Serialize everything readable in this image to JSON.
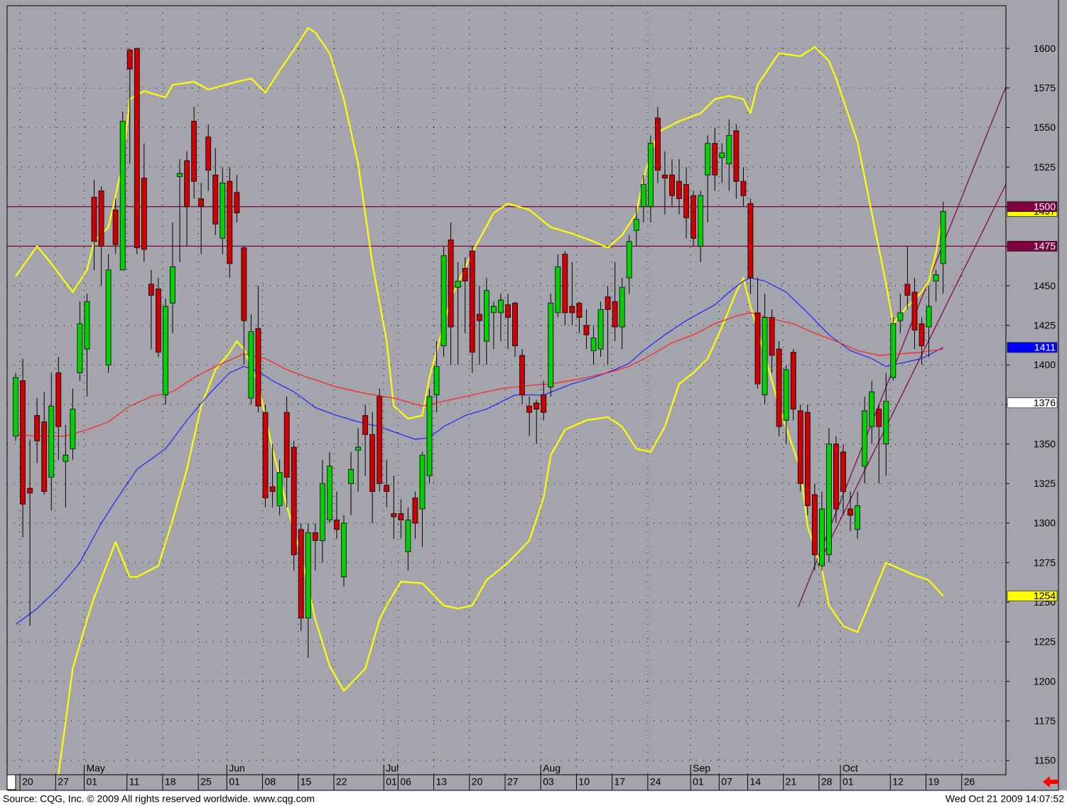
{
  "chart_data": {
    "type": "candlestick",
    "open": [
      1355,
      1390,
      1322,
      1368,
      1364,
      1329,
      1395,
      1339,
      1347,
      1395,
      1410,
      1506,
      1510,
      1400,
      1498,
      1460,
      1599,
      1600,
      1518,
      1451,
      1448,
      1381,
      1439,
      1519,
      1529,
      1554,
      1505,
      1544,
      1520,
      1480,
      1516,
      1509,
      1474,
      1379,
      1423,
      1370,
      1323,
      1311,
      1370,
      1348,
      1296,
      1240,
      1294,
      1289,
      1302,
      1302,
      1266,
      1325,
      1346,
      1368,
      1356,
      1380,
      1324,
      1306,
      1306,
      1282,
      1316,
      1309,
      1330,
      1381,
      1412,
      1479,
      1449,
      1461,
      1472,
      1432,
      1415,
      1433,
      1433,
      1438,
      1439,
      1406,
      1374,
      1376,
      1381,
      1386,
      1433,
      1470,
      1437,
      1439,
      1425,
      1409,
      1410,
      1443,
      1440,
      1424,
      1455,
      1485,
      1500,
      1500,
      1556,
      1520,
      1520,
      1516,
      1514,
      1507,
      1475,
      1520,
      1540,
      1531,
      1527,
      1548,
      1516,
      1502,
      1433,
      1381,
      1430,
      1410,
      1365,
      1408,
      1371,
      1370,
      1318,
      1273,
      1280,
      1350,
      1345,
      1309,
      1296,
      1336,
      1361,
      1372,
      1350,
      1392,
      1428,
      1451,
      1446,
      1426,
      1424,
      1453,
      1464
    ],
    "high": [
      1395,
      1404,
      1353,
      1379,
      1383,
      1395,
      1405,
      1362,
      1385,
      1440,
      1445,
      1517,
      1513,
      1470,
      1505,
      1560,
      1600,
      1600,
      1540,
      1460,
      1455,
      1442,
      1490,
      1530,
      1535,
      1563,
      1515,
      1552,
      1537,
      1525,
      1525,
      1520,
      1475,
      1432,
      1450,
      1375,
      1350,
      1340,
      1380,
      1352,
      1300,
      1300,
      1300,
      1340,
      1345,
      1320,
      1305,
      1345,
      1360,
      1375,
      1370,
      1385,
      1340,
      1330,
      1315,
      1310,
      1320,
      1345,
      1385,
      1415,
      1475,
      1490,
      1465,
      1468,
      1475,
      1450,
      1455,
      1440,
      1445,
      1445,
      1440,
      1410,
      1380,
      1378,
      1390,
      1445,
      1470,
      1472,
      1465,
      1440,
      1435,
      1425,
      1440,
      1450,
      1465,
      1455,
      1482,
      1500,
      1520,
      1545,
      1563,
      1535,
      1530,
      1530,
      1525,
      1510,
      1510,
      1545,
      1550,
      1540,
      1555,
      1552,
      1525,
      1505,
      1455,
      1445,
      1435,
      1415,
      1400,
      1410,
      1375,
      1375,
      1325,
      1320,
      1360,
      1355,
      1350,
      1320,
      1320,
      1380,
      1390,
      1375,
      1395,
      1430,
      1445,
      1475,
      1455,
      1430,
      1450,
      1460,
      1503
    ],
    "low": [
      1352,
      1291,
      1235,
      1338,
      1318,
      1308,
      1340,
      1310,
      1340,
      1390,
      1380,
      1460,
      1450,
      1395,
      1470,
      1460,
      1527,
      1470,
      1465,
      1410,
      1405,
      1375,
      1420,
      1465,
      1475,
      1505,
      1470,
      1510,
      1482,
      1470,
      1455,
      1490,
      1400,
      1375,
      1370,
      1310,
      1310,
      1305,
      1310,
      1270,
      1232,
      1215,
      1270,
      1275,
      1300,
      1290,
      1260,
      1305,
      1320,
      1330,
      1300,
      1320,
      1310,
      1290,
      1290,
      1270,
      1290,
      1285,
      1325,
      1370,
      1405,
      1400,
      1400,
      1420,
      1395,
      1400,
      1400,
      1410,
      1415,
      1410,
      1405,
      1375,
      1355,
      1350,
      1365,
      1380,
      1430,
      1425,
      1425,
      1420,
      1410,
      1400,
      1405,
      1400,
      1415,
      1410,
      1445,
      1475,
      1490,
      1490,
      1515,
      1495,
      1500,
      1495,
      1480,
      1475,
      1465,
      1490,
      1510,
      1515,
      1510,
      1505,
      1500,
      1445,
      1385,
      1375,
      1395,
      1355,
      1350,
      1365,
      1320,
      1305,
      1270,
      1270,
      1275,
      1300,
      1305,
      1295,
      1290,
      1325,
      1350,
      1325,
      1330,
      1390,
      1420,
      1435,
      1410,
      1400,
      1405,
      1440,
      1445
    ],
    "close": [
      1392,
      1312,
      1319,
      1352,
      1320,
      1374,
      1361,
      1343,
      1372,
      1426,
      1440,
      1478,
      1475,
      1460,
      1476,
      1554,
      1587,
      1474,
      1473,
      1444,
      1408,
      1437,
      1462,
      1521,
      1500,
      1516,
      1500,
      1523,
      1489,
      1515,
      1464,
      1496,
      1428,
      1421,
      1374,
      1316,
      1320,
      1332,
      1329,
      1280,
      1240,
      1294,
      1289,
      1325,
      1336,
      1296,
      1300,
      1334,
      1348,
      1356,
      1320,
      1325,
      1320,
      1304,
      1302,
      1302,
      1300,
      1343,
      1380,
      1399,
      1469,
      1424,
      1453,
      1453,
      1408,
      1428,
      1447,
      1437,
      1441,
      1430,
      1412,
      1381,
      1370,
      1372,
      1370,
      1439,
      1462,
      1433,
      1433,
      1430,
      1419,
      1417,
      1435,
      1435,
      1424,
      1449,
      1478,
      1492,
      1514,
      1540,
      1523,
      1518,
      1507,
      1505,
      1493,
      1480,
      1507,
      1540,
      1520,
      1534,
      1545,
      1516,
      1507,
      1455,
      1388,
      1430,
      1406,
      1361,
      1397,
      1372,
      1325,
      1311,
      1280,
      1309,
      1350,
      1309,
      1320,
      1305,
      1311,
      1371,
      1383,
      1361,
      1377,
      1426,
      1433,
      1444,
      1422,
      1412,
      1437,
      1457,
      1497
    ],
    "up_color": "#00d000",
    "down_color": "#cc0000",
    "lines": [
      {
        "color": "#ffff00",
        "x": [
          0,
          3,
          5,
          8,
          10,
          11,
          13,
          15,
          16,
          18,
          21,
          22,
          25,
          27,
          31,
          33,
          35,
          37,
          39,
          41,
          42,
          44,
          46,
          48,
          50,
          52,
          53,
          55,
          57,
          58,
          61,
          64,
          67,
          69,
          72,
          75,
          78,
          81,
          83,
          85,
          87,
          88,
          90,
          93,
          96,
          98,
          100,
          102,
          103,
          104,
          107,
          110,
          112,
          114,
          115,
          118,
          120,
          122,
          123,
          125,
          127,
          128,
          129,
          130
        ],
        "values": [
          1456,
          1475,
          1464,
          1446,
          1460,
          1478,
          1487,
          1527,
          1568,
          1573,
          1569,
          1577,
          1579,
          1574,
          1579,
          1581,
          1572,
          1586,
          1599,
          1613,
          1610,
          1597,
          1568,
          1527,
          1464,
          1415,
          1374,
          1366,
          1368,
          1392,
          1442,
          1471,
          1496,
          1502,
          1498,
          1487,
          1483,
          1478,
          1474,
          1482,
          1496,
          1518,
          1547,
          1554,
          1559,
          1568,
          1570,
          1568,
          1559,
          1577,
          1597,
          1595,
          1601,
          1592,
          1581,
          1541,
          1496,
          1451,
          1426,
          1437,
          1446,
          1453,
          1471,
          1497
        ]
      },
      {
        "color": "#ffff00",
        "x": [
          6,
          8,
          10,
          11,
          14,
          16,
          17,
          20,
          22,
          24,
          26,
          28,
          30,
          31,
          32,
          34,
          36,
          38,
          40,
          42,
          44,
          46,
          49,
          51,
          52,
          54,
          57,
          60,
          62,
          64,
          66,
          69,
          72,
          74,
          75,
          77,
          80,
          83,
          85,
          87,
          89,
          91,
          93,
          95,
          97,
          99,
          101,
          102,
          103,
          105,
          107,
          110,
          111,
          113,
          114,
          116,
          118,
          120,
          122,
          124,
          126,
          128,
          130
        ],
        "values": [
          1141,
          1208,
          1239,
          1253,
          1288,
          1266,
          1266,
          1273,
          1302,
          1334,
          1374,
          1397,
          1408,
          1415,
          1410,
          1388,
          1347,
          1311,
          1280,
          1239,
          1210,
          1194,
          1208,
          1239,
          1248,
          1263,
          1262,
          1248,
          1246,
          1248,
          1264,
          1275,
          1289,
          1316,
          1343,
          1359,
          1365,
          1367,
          1361,
          1347,
          1345,
          1361,
          1388,
          1395,
          1404,
          1424,
          1446,
          1455,
          1437,
          1406,
          1374,
          1334,
          1298,
          1271,
          1248,
          1235,
          1231,
          1253,
          1275,
          1271,
          1267,
          1264,
          1254
        ]
      },
      {
        "color": "#2020ff",
        "x": [
          0,
          3,
          6,
          9,
          12,
          14,
          17,
          21,
          24,
          27,
          30,
          32,
          34,
          36,
          39,
          42,
          45,
          48,
          51,
          54,
          56,
          58,
          60,
          63,
          66,
          70,
          74,
          78,
          81,
          84,
          86,
          88,
          91,
          94,
          98,
          100,
          102,
          103,
          105,
          108,
          111,
          114,
          117,
          120,
          122,
          124,
          127,
          130
        ],
        "values": [
          1236,
          1246,
          1259,
          1275,
          1300,
          1314,
          1334,
          1347,
          1365,
          1381,
          1395,
          1399,
          1396,
          1390,
          1383,
          1373,
          1368,
          1364,
          1361,
          1356,
          1353,
          1354,
          1361,
          1368,
          1372,
          1381,
          1381,
          1388,
          1392,
          1397,
          1401,
          1409,
          1419,
          1428,
          1438,
          1446,
          1453,
          1455,
          1453,
          1446,
          1433,
          1419,
          1409,
          1404,
          1399,
          1401,
          1404,
          1411
        ]
      },
      {
        "color": "#ff2020",
        "x": [
          0,
          3,
          7,
          10,
          13,
          16,
          19,
          22,
          25,
          28,
          32,
          35,
          38,
          41,
          45,
          49,
          53,
          57,
          60,
          64,
          68,
          72,
          75,
          79,
          83,
          86,
          89,
          92,
          95,
          98,
          101,
          103,
          106,
          109,
          112,
          115,
          118,
          121,
          124,
          127,
          130
        ],
        "values": [
          1356,
          1355,
          1355,
          1359,
          1364,
          1374,
          1380,
          1383,
          1392,
          1399,
          1407,
          1404,
          1397,
          1392,
          1386,
          1382,
          1379,
          1374,
          1377,
          1381,
          1385,
          1387,
          1388,
          1391,
          1395,
          1399,
          1406,
          1414,
          1419,
          1426,
          1431,
          1433,
          1429,
          1426,
          1420,
          1415,
          1409,
          1406,
          1407,
          1408,
          1410
        ]
      }
    ],
    "hlines": [
      1500,
      1475
    ],
    "hline_color": "#800040",
    "trendlines": [
      {
        "x": [
          109.7,
          139
        ],
        "values": [
          1247,
          1578
        ]
      },
      {
        "x": [
          112.4,
          139
        ],
        "values": [
          1273,
          1516
        ]
      }
    ],
    "price_labels": [
      {
        "value": 1497,
        "color": "#ffff00"
      },
      {
        "value": 1500,
        "color": "#800040"
      },
      {
        "value": 1475,
        "color": "#800040"
      },
      {
        "value": 1411,
        "color": "#0000ff"
      },
      {
        "value": 1376,
        "color": "#ffffff"
      },
      {
        "value": 1254,
        "color": "#ffff00"
      }
    ],
    "xlim": [
      -1.2,
      138.8
    ],
    "ylim": [
      1141,
      1627
    ],
    "yticks": [
      1150,
      1175,
      1200,
      1225,
      1250,
      1275,
      1300,
      1325,
      1350,
      1375,
      1400,
      1425,
      1450,
      1475,
      1500,
      1525,
      1550,
      1575,
      1600
    ],
    "xticks": [
      {
        "value": 1,
        "label": "20"
      },
      {
        "value": 6,
        "label": "27"
      },
      {
        "value": 10,
        "label": "01"
      },
      {
        "value": 16,
        "label": "11"
      },
      {
        "value": 21,
        "label": "18"
      },
      {
        "value": 26,
        "label": "25"
      },
      {
        "value": 30,
        "label": "01"
      },
      {
        "value": 35,
        "label": "08"
      },
      {
        "value": 40,
        "label": "15"
      },
      {
        "value": 45,
        "label": "22"
      },
      {
        "value": 52,
        "label": "01"
      },
      {
        "value": 54,
        "label": "06"
      },
      {
        "value": 59,
        "label": "13"
      },
      {
        "value": 64,
        "label": "20"
      },
      {
        "value": 69,
        "label": "27"
      },
      {
        "value": 74,
        "label": "03"
      },
      {
        "value": 79,
        "label": "10"
      },
      {
        "value": 84,
        "label": "17"
      },
      {
        "value": 89,
        "label": "24"
      },
      {
        "value": 95,
        "label": "01"
      },
      {
        "value": 99,
        "label": "07"
      },
      {
        "value": 103,
        "label": "14"
      },
      {
        "value": 108,
        "label": "21"
      },
      {
        "value": 113,
        "label": "28"
      },
      {
        "value": 116,
        "label": "01"
      },
      {
        "value": 123,
        "label": "12"
      },
      {
        "value": 128,
        "label": "19"
      },
      {
        "value": 133,
        "label": "26"
      }
    ],
    "month_labels": [
      {
        "value": 10,
        "label": "May"
      },
      {
        "value": 30,
        "label": "Jun"
      },
      {
        "value": 52,
        "label": "Jul"
      },
      {
        "value": 74,
        "label": "Aug"
      },
      {
        "value": 95,
        "label": "Sep"
      },
      {
        "value": 116,
        "label": "Oct"
      }
    ],
    "grid": true,
    "source": "Source: CQG, Inc. © 2009 All rights reserved worldwide. www.cqg.com",
    "timestamp": "Wed Oct 21 2009 14:07:52"
  }
}
